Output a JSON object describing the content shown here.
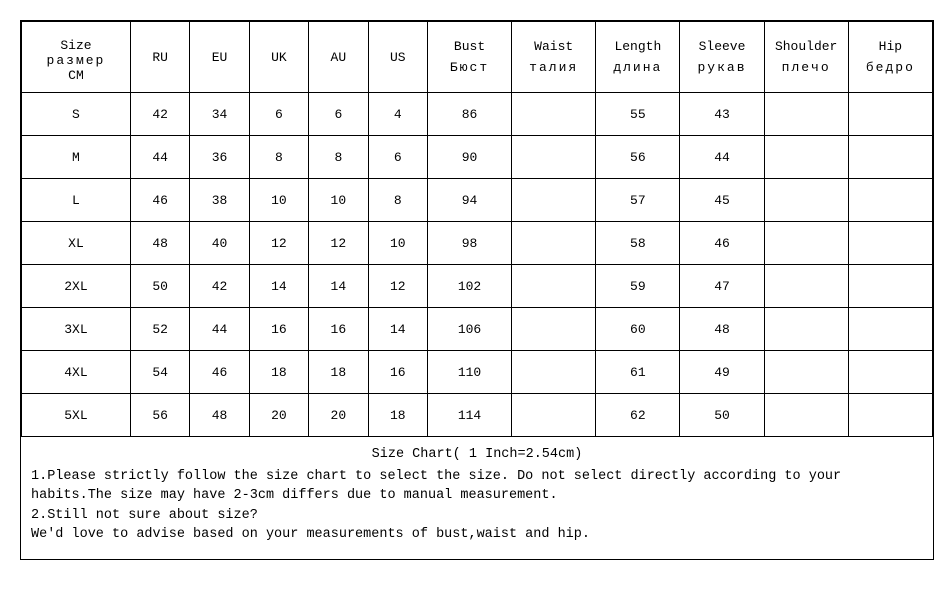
{
  "table": {
    "headers": [
      {
        "top": "Size",
        "mid": "размер",
        "bot": "CM"
      },
      {
        "top": "RU",
        "bot": ""
      },
      {
        "top": "EU",
        "bot": ""
      },
      {
        "top": "UK",
        "bot": ""
      },
      {
        "top": "AU",
        "bot": ""
      },
      {
        "top": "US",
        "bot": ""
      },
      {
        "top": "Bust",
        "bot": "Бюст"
      },
      {
        "top": "Waist",
        "bot": "талия"
      },
      {
        "top": "Length",
        "bot": "длина"
      },
      {
        "top": "Sleeve",
        "bot": "рукав"
      },
      {
        "top": "Shoulder",
        "bot": "плечо"
      },
      {
        "top": "Hip",
        "bot": "бедро"
      }
    ],
    "rows": [
      [
        "S",
        "42",
        "34",
        "6",
        "6",
        "4",
        "86",
        "",
        "55",
        "43",
        "",
        ""
      ],
      [
        "M",
        "44",
        "36",
        "8",
        "8",
        "6",
        "90",
        "",
        "56",
        "44",
        "",
        ""
      ],
      [
        "L",
        "46",
        "38",
        "10",
        "10",
        "8",
        "94",
        "",
        "57",
        "45",
        "",
        ""
      ],
      [
        "XL",
        "48",
        "40",
        "12",
        "12",
        "10",
        "98",
        "",
        "58",
        "46",
        "",
        ""
      ],
      [
        "2XL",
        "50",
        "42",
        "14",
        "14",
        "12",
        "102",
        "",
        "59",
        "47",
        "",
        ""
      ],
      [
        "3XL",
        "52",
        "44",
        "16",
        "16",
        "14",
        "106",
        "",
        "60",
        "48",
        "",
        ""
      ],
      [
        "4XL",
        "54",
        "46",
        "18",
        "18",
        "16",
        "110",
        "",
        "61",
        "49",
        "",
        ""
      ],
      [
        "5XL",
        "56",
        "48",
        "20",
        "20",
        "18",
        "114",
        "",
        "62",
        "50",
        "",
        ""
      ]
    ]
  },
  "notes": {
    "title": "Size Chart( 1 Inch=2.54cm)",
    "lines": [
      "1.Please strictly follow the size chart to select the size. Do not select directly according to your",
      "habits.The size may have 2-3cm differs due to manual measurement.",
      "2.Still not sure about size?",
      "We'd love to advise based on your measurements of bust,waist and hip."
    ]
  },
  "style": {
    "border_color": "#000000",
    "background": "#ffffff",
    "font_family": "Courier New",
    "header_fontsize": 13,
    "cell_fontsize": 13,
    "notes_fontsize": 13.5
  }
}
